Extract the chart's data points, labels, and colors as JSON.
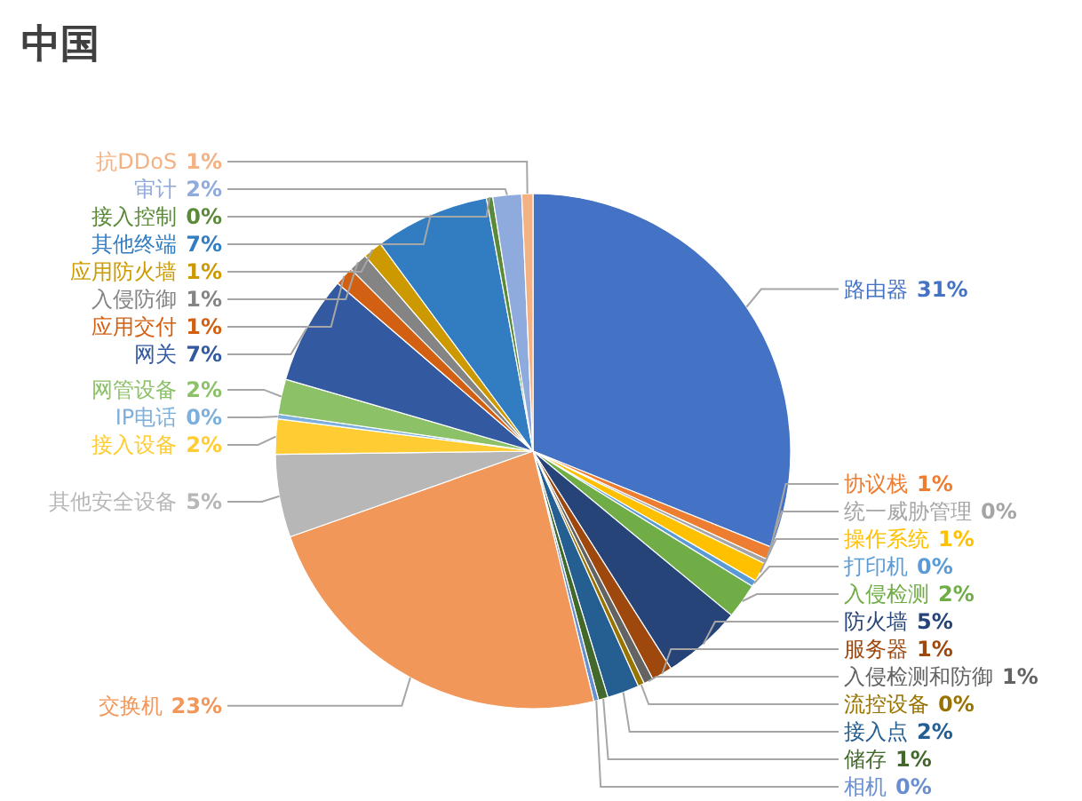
{
  "chart_data": {
    "type": "pie",
    "title": "中国",
    "categories": [
      "路由器",
      "协议栈",
      "统一威胁管理",
      "操作系统",
      "打印机",
      "入侵检测",
      "防火墙",
      "服务器",
      "入侵检测和防御",
      "流控设备",
      "接入点",
      "储存",
      "相机",
      "交换机",
      "其他安全设备",
      "接入设备",
      "IP电话",
      "网管设备",
      "网关",
      "应用交付",
      "入侵防御",
      "应用防火墙",
      "其他终端",
      "接入控制",
      "审计",
      "抗DDoS"
    ],
    "values": [
      31.1,
      0.8,
      0.3,
      1.2,
      0.4,
      2.2,
      5.0,
      1.3,
      0.6,
      0.4,
      2.0,
      0.6,
      0.3,
      23.4,
      5.2,
      2.2,
      0.3,
      2.2,
      6.8,
      1.2,
      1.2,
      1.2,
      7.2,
      0.4,
      1.8,
      0.7
    ],
    "value_labels": [
      "31%",
      "1%",
      "0%",
      "1%",
      "0%",
      "2%",
      "5%",
      "1%",
      "1%",
      "0%",
      "2%",
      "1%",
      "0%",
      "23%",
      "5%",
      "2%",
      "0%",
      "2%",
      "7%",
      "1%",
      "1%",
      "1%",
      "7%",
      "0%",
      "2%",
      "1%"
    ],
    "colors": [
      "#4472c4",
      "#ed7d31",
      "#a5a5a5",
      "#ffc000",
      "#5b9bd5",
      "#70ad47",
      "#264478",
      "#9e480e",
      "#636363",
      "#997300",
      "#255e91",
      "#43682b",
      "#698ed0",
      "#f1975a",
      "#b7b7b7",
      "#ffcd33",
      "#7cafdd",
      "#8cc168",
      "#335aa1",
      "#d26012",
      "#848484",
      "#cc9a00",
      "#327dc2",
      "#5a8a39",
      "#8faadc",
      "#f4b183"
    ],
    "legend": false
  }
}
